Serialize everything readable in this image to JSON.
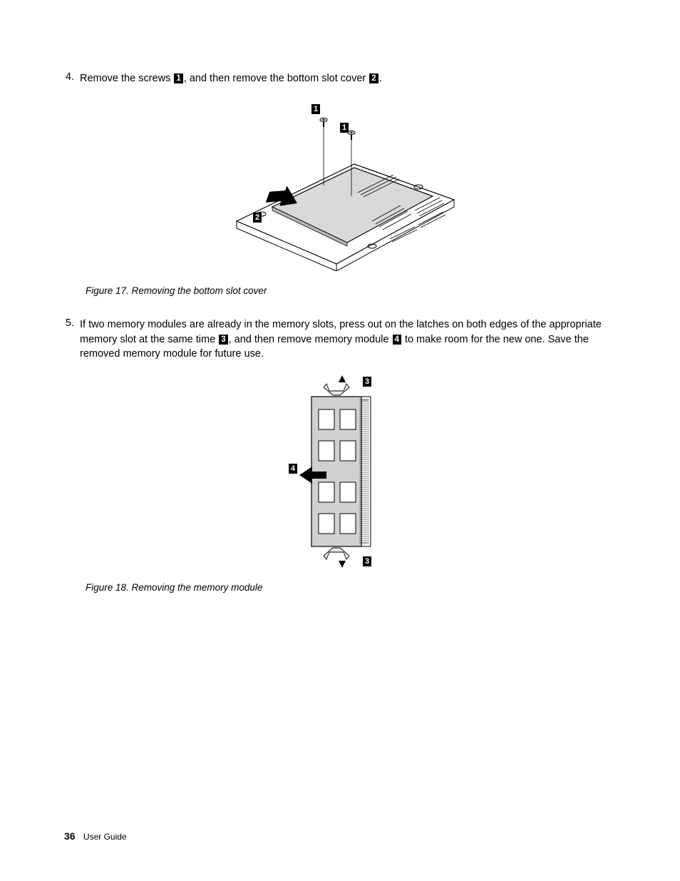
{
  "step4": {
    "num": "4.",
    "part1": "Remove the screws ",
    "c1": "1",
    "part2": ", and then remove the bottom slot cover ",
    "c2": "2",
    "part3": "."
  },
  "figure17": {
    "caption": "Figure 17.  Removing the bottom slot cover",
    "callouts": {
      "a": "1",
      "b": "1",
      "c": "2"
    },
    "colors": {
      "fill": "#d9d9d9",
      "stroke": "#000000",
      "bg": "#ffffff"
    }
  },
  "step5": {
    "num": "5.",
    "part1": "If two memory modules are already in the memory slots, press out on the latches on both edges of the appropriate memory slot at the same time ",
    "c1": "3",
    "part2": ", and then remove memory module ",
    "c2": "4",
    "part3": " to make room for the new one.  Save the removed memory module for future use."
  },
  "figure18": {
    "caption": "Figure 18.  Removing the memory module",
    "callouts": {
      "a": "3",
      "b": "3",
      "c": "4"
    },
    "colors": {
      "fill": "#d0d0d0",
      "stroke": "#000000",
      "bg": "#ffffff"
    }
  },
  "footer": {
    "page": "36",
    "label": "User Guide"
  }
}
